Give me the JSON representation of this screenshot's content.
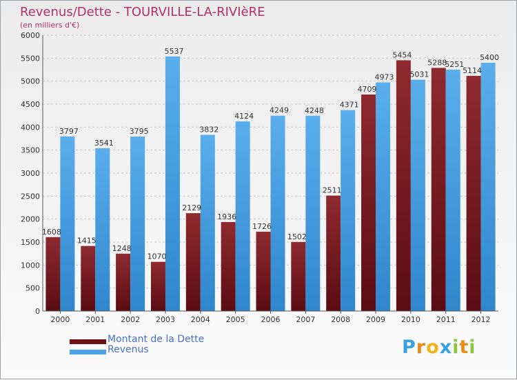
{
  "title": "Revenus/Dette - TOURVILLE-LA-RIVIèRE",
  "subtitle": "(en milliers d'€)",
  "legend": {
    "debt_label": "Montant de la Dette",
    "revenue_label": "Revenus"
  },
  "logo_text": "Proxiti",
  "colors": {
    "debt": "#7a1a1f",
    "revenue": "#4ea3e6",
    "title": "#b0306a",
    "legend_text": "#4a6fc9"
  },
  "chart_data": {
    "type": "bar",
    "categories": [
      "2000",
      "2001",
      "2002",
      "2003",
      "2004",
      "2005",
      "2006",
      "2007",
      "2008",
      "2009",
      "2010",
      "2011",
      "2012"
    ],
    "series": [
      {
        "name": "Montant de la Dette",
        "values": [
          1608,
          1415,
          1248,
          1070,
          2129,
          1936,
          1726,
          1502,
          2511,
          4709,
          5454,
          5288,
          5114
        ]
      },
      {
        "name": "Revenus",
        "values": [
          3797,
          3541,
          3795,
          5537,
          3832,
          4124,
          4249,
          4248,
          4371,
          4973,
          5031,
          5251,
          5400
        ]
      }
    ],
    "ylim": [
      0,
      6000
    ],
    "yticks": [
      0,
      500,
      1000,
      1500,
      2000,
      2500,
      3000,
      3500,
      4000,
      4500,
      5000,
      5500,
      6000
    ],
    "grid": true,
    "legend_position": "bottom-left"
  }
}
